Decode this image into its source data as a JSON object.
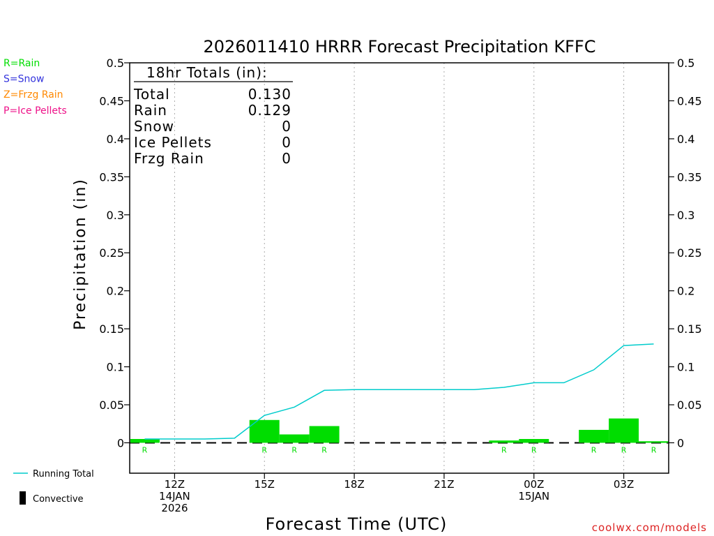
{
  "chart_data": {
    "type": "bar",
    "title": "2026011410 HRRR Forecast Precipitation KFFC",
    "xlabel": "Forecast Time (UTC)",
    "ylabel": "Precipitation (in)",
    "ylim": [
      -0.04,
      0.5
    ],
    "yticks": [
      0,
      0.05,
      0.1,
      0.15,
      0.2,
      0.25,
      0.3,
      0.35,
      0.4,
      0.45,
      0.5
    ],
    "ytick_labels": [
      "0",
      "0.05",
      "0.1",
      "0.15",
      "0.2",
      "0.25",
      "0.3",
      "0.35",
      "0.4",
      "0.45",
      "0.5"
    ],
    "xlim": [
      10.5,
      28.5
    ],
    "xticks": [
      {
        "x": 12,
        "lines": [
          "12Z",
          "14JAN",
          "2026"
        ]
      },
      {
        "x": 15,
        "lines": [
          "15Z"
        ]
      },
      {
        "x": 18,
        "lines": [
          "18Z"
        ]
      },
      {
        "x": 21,
        "lines": [
          "21Z"
        ]
      },
      {
        "x": 24,
        "lines": [
          "00Z",
          "15JAN"
        ]
      },
      {
        "x": 27,
        "lines": [
          "03Z"
        ]
      }
    ],
    "grid": "vertical-dotted",
    "hours": [
      11,
      12,
      13,
      14,
      15,
      16,
      17,
      18,
      19,
      20,
      21,
      22,
      23,
      24,
      25,
      26,
      27,
      28
    ],
    "hourly_precip": [
      0.005,
      0,
      0,
      0,
      0.03,
      0.011,
      0.022,
      0,
      0,
      0,
      0,
      0,
      0.003,
      0.005,
      0,
      0.017,
      0.032,
      0.002
    ],
    "precip_type": [
      "R",
      "",
      "",
      "",
      "R",
      "R",
      "R",
      "",
      "",
      "",
      "",
      "",
      "R",
      "R",
      "",
      "R",
      "R",
      "R"
    ],
    "running_total": {
      "name": "Running Total",
      "x": [
        11,
        12,
        13,
        14,
        15,
        16,
        17,
        18,
        19,
        20,
        21,
        22,
        23,
        24,
        25,
        26,
        27,
        28
      ],
      "values": [
        0.005,
        0.005,
        0.005,
        0.006,
        0.036,
        0.047,
        0.069,
        0.07,
        0.07,
        0.07,
        0.07,
        0.07,
        0.073,
        0.079,
        0.079,
        0.096,
        0.128,
        0.13
      ]
    },
    "colors": {
      "rain": "#00dd00",
      "snow": "#3333dd",
      "frzg_rain": "#ff8800",
      "ice_pellets": "#ee1188",
      "running_total": "#00cccc",
      "convective": "#000000"
    }
  },
  "type_legend": [
    {
      "label": "R=Rain",
      "color": "#00dd00"
    },
    {
      "label": "S=Snow",
      "color": "#3333dd"
    },
    {
      "label": "Z=Frzg Rain",
      "color": "#ff8800"
    },
    {
      "label": "P=Ice Pellets",
      "color": "#ee1188"
    }
  ],
  "totals_box": {
    "header": "18hr Totals (in):",
    "rows": [
      {
        "label": "Total",
        "value": "0.130"
      },
      {
        "label": "Rain",
        "value": "0.129"
      },
      {
        "label": "Snow",
        "value": "0"
      },
      {
        "label": "Ice Pellets",
        "value": "0"
      },
      {
        "label": "Frzg Rain",
        "value": "0"
      }
    ]
  },
  "bottom_legend": {
    "running_total_label": "Running Total",
    "convective_label": "Convective"
  },
  "credit": "coolwx.com/models"
}
